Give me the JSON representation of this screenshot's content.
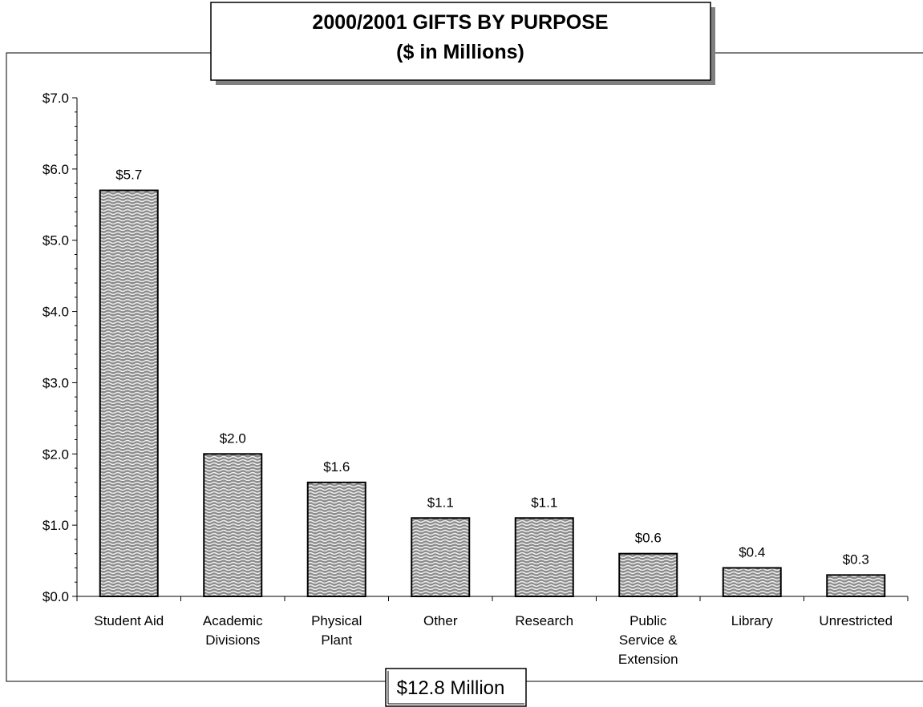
{
  "chart_data": {
    "type": "bar",
    "title_line1": "2000/2001 GIFTS BY PURPOSE",
    "title_line2": "($ in Millions)",
    "categories": [
      [
        "Student Aid"
      ],
      [
        "Academic",
        "Divisions"
      ],
      [
        "Physical",
        "Plant"
      ],
      [
        "Other"
      ],
      [
        "Research"
      ],
      [
        "Public",
        "Service &",
        "Extension"
      ],
      [
        "Library"
      ],
      [
        "Unrestricted"
      ]
    ],
    "values": [
      5.7,
      2.0,
      1.6,
      1.1,
      1.1,
      0.6,
      0.4,
      0.3
    ],
    "data_labels": [
      "$5.7",
      "$2.0",
      "$1.6",
      "$1.1",
      "$1.1",
      "$0.6",
      "$0.4",
      "$0.3"
    ],
    "ylim": [
      0,
      7
    ],
    "yticks": [
      0,
      1,
      2,
      3,
      4,
      5,
      6,
      7
    ],
    "ytick_labels": [
      "$0.0",
      "$1.0",
      "$2.0",
      "$3.0",
      "$4.0",
      "$5.0",
      "$6.0",
      "$7.0"
    ],
    "grid": false,
    "legend": "none",
    "total_label": "$12.8 Million",
    "bar_fill": "#8c8c8c",
    "bar_pattern": "wavy"
  }
}
